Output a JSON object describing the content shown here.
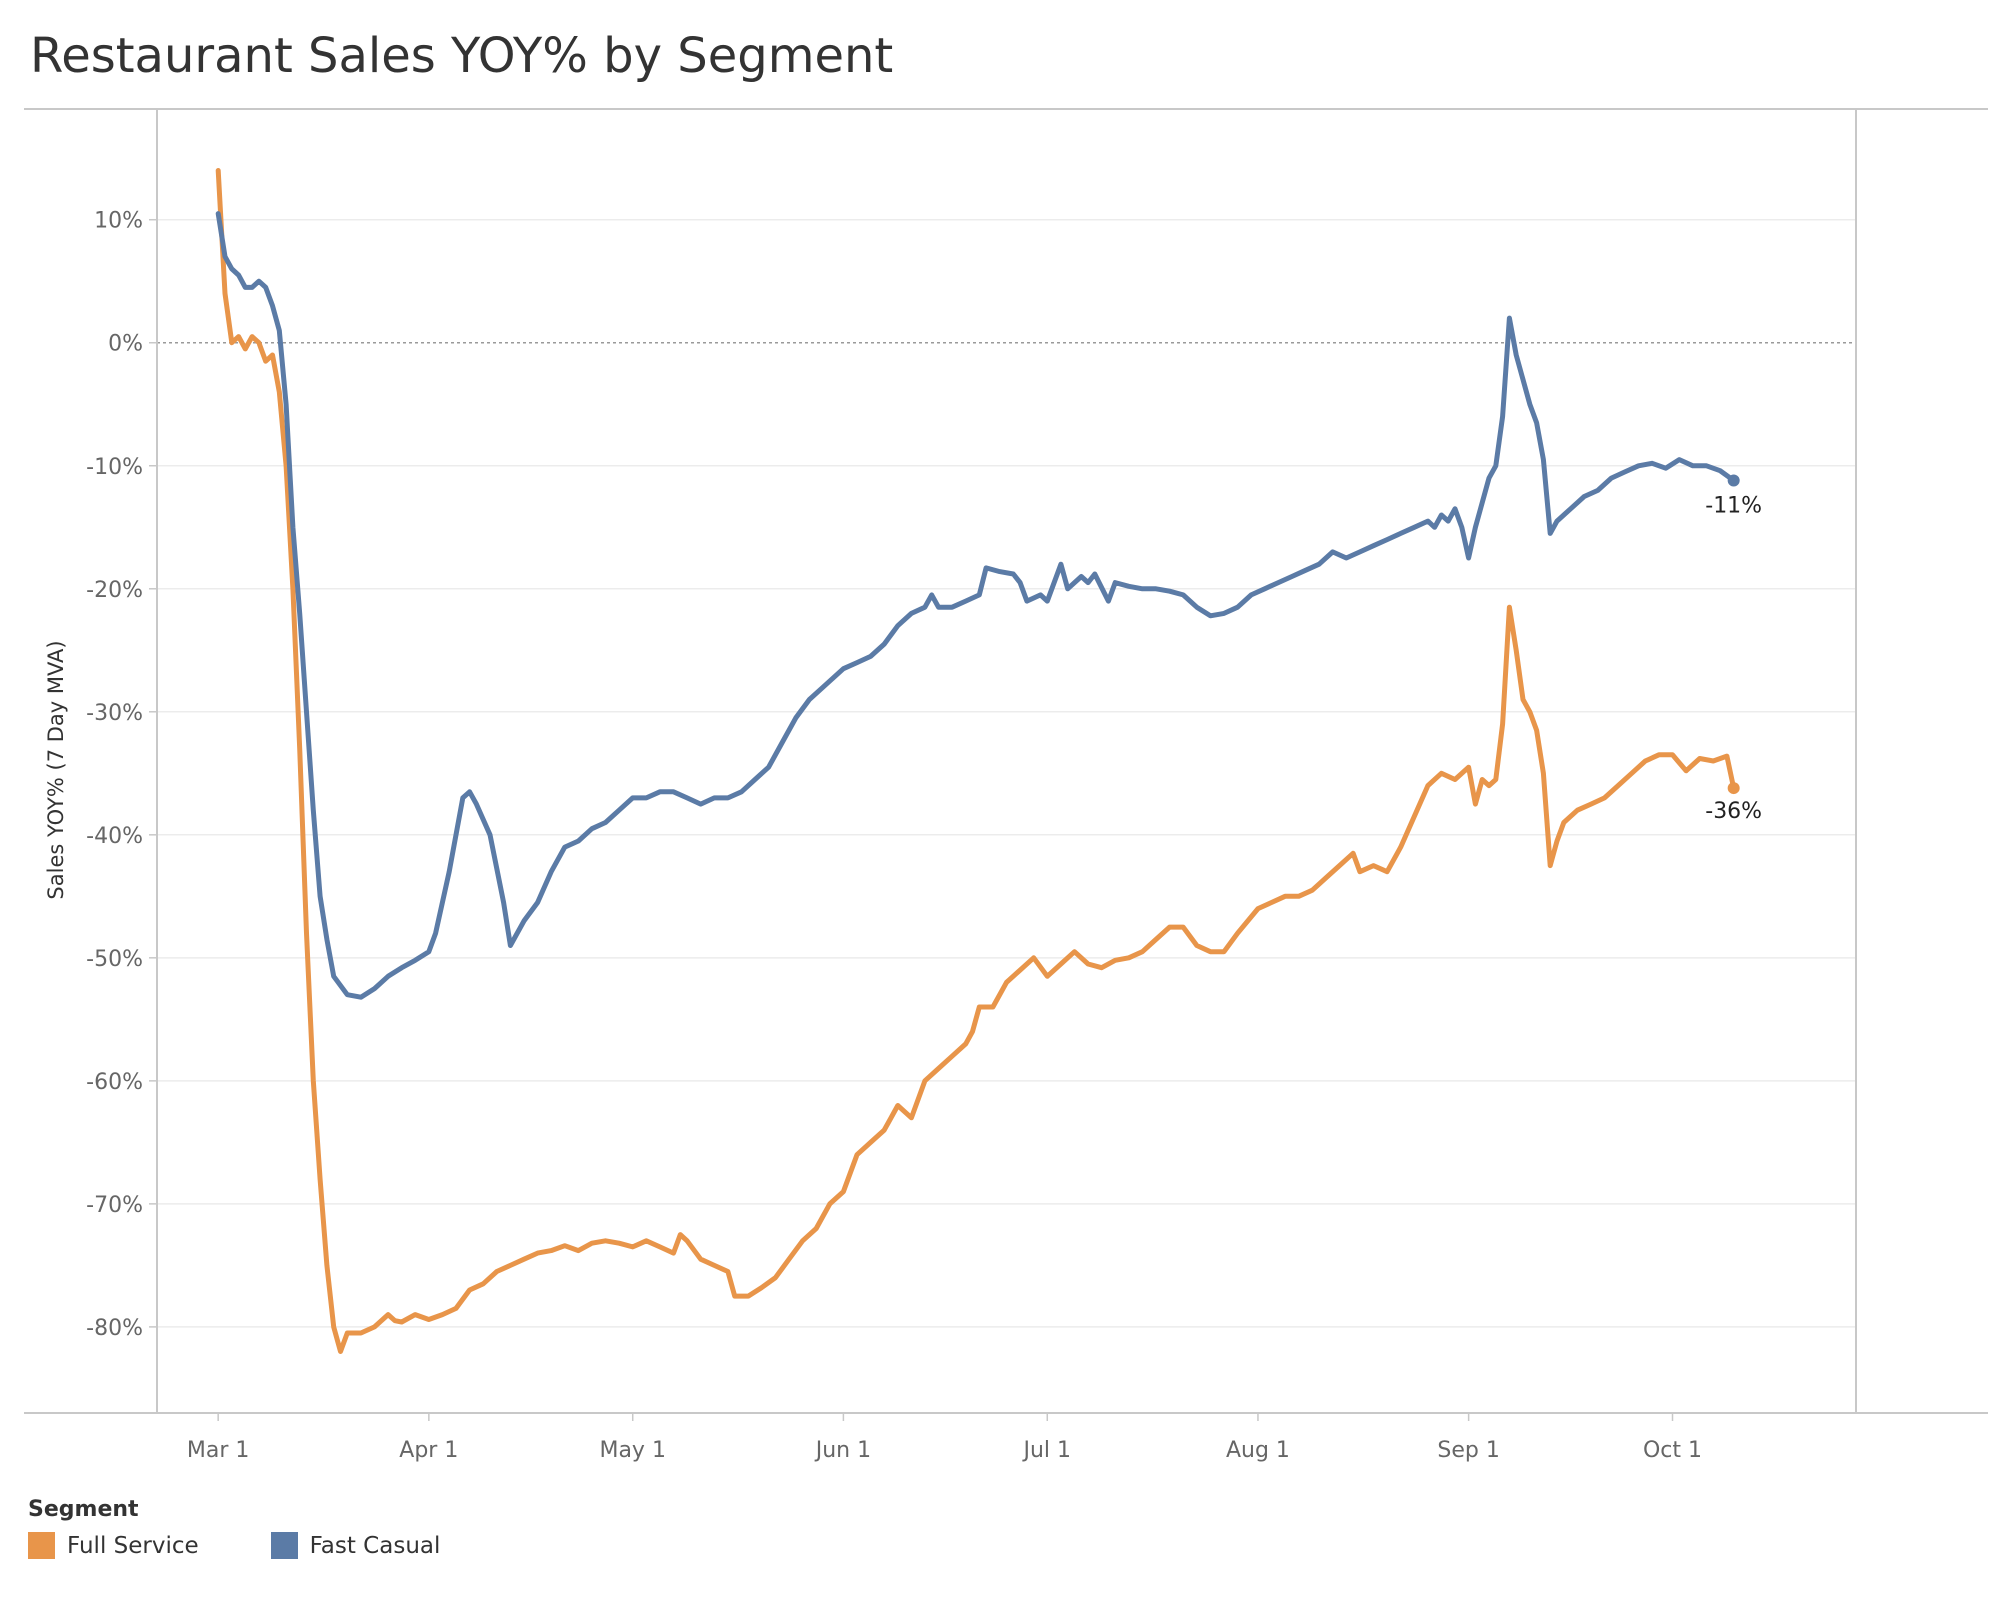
{
  "title": "Restaurant Sales YOY% by Segment",
  "legend": {
    "title": "Segment"
  },
  "colors": {
    "full_service": "#E8954A",
    "fast_casual": "#5B7BA6"
  },
  "chart_data": {
    "type": "line",
    "title": "Restaurant Sales YOY% by Segment",
    "xlabel": "",
    "ylabel": "Sales YOY% (7 Day MVA)",
    "x_ticks": [
      "Mar 1",
      "Apr 1",
      "May 1",
      "Jun 1",
      "Jul 1",
      "Aug 1",
      "Sep 1",
      "Oct 1"
    ],
    "x_tick_dates": [
      "2020-03-01",
      "2020-04-01",
      "2020-05-01",
      "2020-06-01",
      "2020-07-01",
      "2020-08-01",
      "2020-09-01",
      "2020-10-01"
    ],
    "y_ticks": [
      "10%",
      "0%",
      "-10%",
      "-20%",
      "-30%",
      "-40%",
      "-50%",
      "-60%",
      "-70%",
      "-80%"
    ],
    "y_tick_values": [
      10,
      0,
      -10,
      -20,
      -30,
      -40,
      -50,
      -60,
      -70,
      -80
    ],
    "ylim": [
      -87,
      19
    ],
    "xlim": [
      "2020-02-21",
      "2020-10-28"
    ],
    "grid": true,
    "reference_line_y": 0,
    "legend_position": "bottom-left",
    "series": [
      {
        "name": "Full Service",
        "color": "#E8954A",
        "end_label": "-36%",
        "points": [
          [
            "2020-03-01",
            14
          ],
          [
            "2020-03-02",
            4
          ],
          [
            "2020-03-03",
            0
          ],
          [
            "2020-03-04",
            0.5
          ],
          [
            "2020-03-05",
            -0.5
          ],
          [
            "2020-03-06",
            0.5
          ],
          [
            "2020-03-07",
            0
          ],
          [
            "2020-03-08",
            -1.5
          ],
          [
            "2020-03-09",
            -1
          ],
          [
            "2020-03-10",
            -4
          ],
          [
            "2020-03-11",
            -10
          ],
          [
            "2020-03-12",
            -20
          ],
          [
            "2020-03-13",
            -33
          ],
          [
            "2020-03-14",
            -48
          ],
          [
            "2020-03-15",
            -60
          ],
          [
            "2020-03-16",
            -68
          ],
          [
            "2020-03-17",
            -75
          ],
          [
            "2020-03-18",
            -80
          ],
          [
            "2020-03-19",
            -82
          ],
          [
            "2020-03-20",
            -80.5
          ],
          [
            "2020-03-22",
            -80.5
          ],
          [
            "2020-03-24",
            -80
          ],
          [
            "2020-03-26",
            -79
          ],
          [
            "2020-03-27",
            -79.5
          ],
          [
            "2020-03-28",
            -79.6
          ],
          [
            "2020-03-30",
            -79
          ],
          [
            "2020-04-01",
            -79.4
          ],
          [
            "2020-04-03",
            -79
          ],
          [
            "2020-04-05",
            -78.5
          ],
          [
            "2020-04-07",
            -77
          ],
          [
            "2020-04-09",
            -76.5
          ],
          [
            "2020-04-11",
            -75.5
          ],
          [
            "2020-04-13",
            -75
          ],
          [
            "2020-04-15",
            -74.5
          ],
          [
            "2020-04-17",
            -74
          ],
          [
            "2020-04-19",
            -73.8
          ],
          [
            "2020-04-21",
            -73.4
          ],
          [
            "2020-04-23",
            -73.8
          ],
          [
            "2020-04-25",
            -73.2
          ],
          [
            "2020-04-27",
            -73
          ],
          [
            "2020-04-29",
            -73.2
          ],
          [
            "2020-05-01",
            -73.5
          ],
          [
            "2020-05-03",
            -73
          ],
          [
            "2020-05-05",
            -73.5
          ],
          [
            "2020-05-07",
            -74
          ],
          [
            "2020-05-08",
            -72.5
          ],
          [
            "2020-05-09",
            -73
          ],
          [
            "2020-05-11",
            -74.5
          ],
          [
            "2020-05-13",
            -75
          ],
          [
            "2020-05-15",
            -75.5
          ],
          [
            "2020-05-16",
            -77.5
          ],
          [
            "2020-05-18",
            -77.5
          ],
          [
            "2020-05-20",
            -76.8
          ],
          [
            "2020-05-22",
            -76
          ],
          [
            "2020-05-24",
            -74.5
          ],
          [
            "2020-05-26",
            -73
          ],
          [
            "2020-05-28",
            -72
          ],
          [
            "2020-05-30",
            -70
          ],
          [
            "2020-06-01",
            -69
          ],
          [
            "2020-06-03",
            -66
          ],
          [
            "2020-06-05",
            -65
          ],
          [
            "2020-06-07",
            -64
          ],
          [
            "2020-06-09",
            -62
          ],
          [
            "2020-06-11",
            -63
          ],
          [
            "2020-06-13",
            -60
          ],
          [
            "2020-06-15",
            -59
          ],
          [
            "2020-06-17",
            -58
          ],
          [
            "2020-06-19",
            -57
          ],
          [
            "2020-06-20",
            -56
          ],
          [
            "2020-06-21",
            -54
          ],
          [
            "2020-06-23",
            -54
          ],
          [
            "2020-06-25",
            -52
          ],
          [
            "2020-06-27",
            -51
          ],
          [
            "2020-06-29",
            -50
          ],
          [
            "2020-07-01",
            -51.5
          ],
          [
            "2020-07-03",
            -50.5
          ],
          [
            "2020-07-05",
            -49.5
          ],
          [
            "2020-07-07",
            -50.5
          ],
          [
            "2020-07-09",
            -50.8
          ],
          [
            "2020-07-11",
            -50.2
          ],
          [
            "2020-07-13",
            -50
          ],
          [
            "2020-07-15",
            -49.5
          ],
          [
            "2020-07-17",
            -48.5
          ],
          [
            "2020-07-19",
            -47.5
          ],
          [
            "2020-07-21",
            -47.5
          ],
          [
            "2020-07-23",
            -49
          ],
          [
            "2020-07-25",
            -49.5
          ],
          [
            "2020-07-27",
            -49.5
          ],
          [
            "2020-07-29",
            -48
          ],
          [
            "2020-08-01",
            -46
          ],
          [
            "2020-08-03",
            -45.5
          ],
          [
            "2020-08-05",
            -45
          ],
          [
            "2020-08-07",
            -45
          ],
          [
            "2020-08-09",
            -44.5
          ],
          [
            "2020-08-11",
            -43.5
          ],
          [
            "2020-08-13",
            -42.5
          ],
          [
            "2020-08-15",
            -41.5
          ],
          [
            "2020-08-16",
            -43
          ],
          [
            "2020-08-18",
            -42.5
          ],
          [
            "2020-08-20",
            -43
          ],
          [
            "2020-08-22",
            -41
          ],
          [
            "2020-08-24",
            -38.5
          ],
          [
            "2020-08-26",
            -36
          ],
          [
            "2020-08-28",
            -35
          ],
          [
            "2020-08-30",
            -35.5
          ],
          [
            "2020-09-01",
            -34.5
          ],
          [
            "2020-09-02",
            -37.5
          ],
          [
            "2020-09-03",
            -35.5
          ],
          [
            "2020-09-04",
            -36
          ],
          [
            "2020-09-05",
            -35.5
          ],
          [
            "2020-09-06",
            -31
          ],
          [
            "2020-09-07",
            -21.5
          ],
          [
            "2020-09-08",
            -25
          ],
          [
            "2020-09-09",
            -29
          ],
          [
            "2020-09-10",
            -30
          ],
          [
            "2020-09-11",
            -31.5
          ],
          [
            "2020-09-12",
            -35
          ],
          [
            "2020-09-13",
            -42.5
          ],
          [
            "2020-09-14",
            -40.5
          ],
          [
            "2020-09-15",
            -39
          ],
          [
            "2020-09-17",
            -38
          ],
          [
            "2020-09-19",
            -37.5
          ],
          [
            "2020-09-21",
            -37
          ],
          [
            "2020-09-23",
            -36
          ],
          [
            "2020-09-25",
            -35
          ],
          [
            "2020-09-27",
            -34
          ],
          [
            "2020-09-29",
            -33.5
          ],
          [
            "2020-10-01",
            -33.5
          ],
          [
            "2020-10-03",
            -34.8
          ],
          [
            "2020-10-05",
            -33.8
          ],
          [
            "2020-10-07",
            -34
          ],
          [
            "2020-10-09",
            -33.6
          ],
          [
            "2020-10-10",
            -36.2
          ]
        ]
      },
      {
        "name": "Fast Casual",
        "color": "#5B7BA6",
        "end_label": "-11%",
        "points": [
          [
            "2020-03-01",
            10.5
          ],
          [
            "2020-03-02",
            7
          ],
          [
            "2020-03-03",
            6
          ],
          [
            "2020-03-04",
            5.5
          ],
          [
            "2020-03-05",
            4.5
          ],
          [
            "2020-03-06",
            4.5
          ],
          [
            "2020-03-07",
            5
          ],
          [
            "2020-03-08",
            4.5
          ],
          [
            "2020-03-09",
            3
          ],
          [
            "2020-03-10",
            1
          ],
          [
            "2020-03-11",
            -5
          ],
          [
            "2020-03-12",
            -15
          ],
          [
            "2020-03-13",
            -22
          ],
          [
            "2020-03-14",
            -30
          ],
          [
            "2020-03-15",
            -38
          ],
          [
            "2020-03-16",
            -45
          ],
          [
            "2020-03-17",
            -48.5
          ],
          [
            "2020-03-18",
            -51.5
          ],
          [
            "2020-03-20",
            -53
          ],
          [
            "2020-03-22",
            -53.2
          ],
          [
            "2020-03-24",
            -52.5
          ],
          [
            "2020-03-26",
            -51.5
          ],
          [
            "2020-03-28",
            -50.8
          ],
          [
            "2020-03-30",
            -50.2
          ],
          [
            "2020-04-01",
            -49.5
          ],
          [
            "2020-04-02",
            -48
          ],
          [
            "2020-04-04",
            -43
          ],
          [
            "2020-04-06",
            -37
          ],
          [
            "2020-04-07",
            -36.5
          ],
          [
            "2020-04-08",
            -37.5
          ],
          [
            "2020-04-10",
            -40
          ],
          [
            "2020-04-12",
            -45.5
          ],
          [
            "2020-04-13",
            -49
          ],
          [
            "2020-04-15",
            -47
          ],
          [
            "2020-04-17",
            -45.5
          ],
          [
            "2020-04-19",
            -43
          ],
          [
            "2020-04-21",
            -41
          ],
          [
            "2020-04-23",
            -40.5
          ],
          [
            "2020-04-25",
            -39.5
          ],
          [
            "2020-04-27",
            -39
          ],
          [
            "2020-04-29",
            -38
          ],
          [
            "2020-05-01",
            -37
          ],
          [
            "2020-05-03",
            -37
          ],
          [
            "2020-05-05",
            -36.5
          ],
          [
            "2020-05-07",
            -36.5
          ],
          [
            "2020-05-09",
            -37
          ],
          [
            "2020-05-11",
            -37.5
          ],
          [
            "2020-05-13",
            -37
          ],
          [
            "2020-05-15",
            -37
          ],
          [
            "2020-05-17",
            -36.5
          ],
          [
            "2020-05-19",
            -35.5
          ],
          [
            "2020-05-21",
            -34.5
          ],
          [
            "2020-05-23",
            -32.5
          ],
          [
            "2020-05-25",
            -30.5
          ],
          [
            "2020-05-27",
            -29
          ],
          [
            "2020-05-29",
            -28
          ],
          [
            "2020-06-01",
            -26.5
          ],
          [
            "2020-06-03",
            -26
          ],
          [
            "2020-06-05",
            -25.5
          ],
          [
            "2020-06-07",
            -24.5
          ],
          [
            "2020-06-09",
            -23
          ],
          [
            "2020-06-11",
            -22
          ],
          [
            "2020-06-13",
            -21.5
          ],
          [
            "2020-06-14",
            -20.5
          ],
          [
            "2020-06-15",
            -21.5
          ],
          [
            "2020-06-17",
            -21.5
          ],
          [
            "2020-06-19",
            -21
          ],
          [
            "2020-06-21",
            -20.5
          ],
          [
            "2020-06-22",
            -18.3
          ],
          [
            "2020-06-24",
            -18.6
          ],
          [
            "2020-06-26",
            -18.8
          ],
          [
            "2020-06-27",
            -19.5
          ],
          [
            "2020-06-28",
            -21
          ],
          [
            "2020-06-30",
            -20.5
          ],
          [
            "2020-07-01",
            -21
          ],
          [
            "2020-07-03",
            -18
          ],
          [
            "2020-07-04",
            -20
          ],
          [
            "2020-07-06",
            -19
          ],
          [
            "2020-07-07",
            -19.5
          ],
          [
            "2020-07-08",
            -18.8
          ],
          [
            "2020-07-10",
            -21
          ],
          [
            "2020-07-11",
            -19.5
          ],
          [
            "2020-07-13",
            -19.8
          ],
          [
            "2020-07-15",
            -20
          ],
          [
            "2020-07-17",
            -20
          ],
          [
            "2020-07-19",
            -20.2
          ],
          [
            "2020-07-21",
            -20.5
          ],
          [
            "2020-07-23",
            -21.5
          ],
          [
            "2020-07-25",
            -22.2
          ],
          [
            "2020-07-27",
            -22
          ],
          [
            "2020-07-29",
            -21.5
          ],
          [
            "2020-07-31",
            -20.5
          ],
          [
            "2020-08-02",
            -20
          ],
          [
            "2020-08-04",
            -19.5
          ],
          [
            "2020-08-06",
            -19
          ],
          [
            "2020-08-08",
            -18.5
          ],
          [
            "2020-08-10",
            -18
          ],
          [
            "2020-08-12",
            -17
          ],
          [
            "2020-08-14",
            -17.5
          ],
          [
            "2020-08-16",
            -17
          ],
          [
            "2020-08-18",
            -16.5
          ],
          [
            "2020-08-20",
            -16
          ],
          [
            "2020-08-22",
            -15.5
          ],
          [
            "2020-08-24",
            -15
          ],
          [
            "2020-08-26",
            -14.5
          ],
          [
            "2020-08-27",
            -15
          ],
          [
            "2020-08-28",
            -14
          ],
          [
            "2020-08-29",
            -14.5
          ],
          [
            "2020-08-30",
            -13.5
          ],
          [
            "2020-08-31",
            -15
          ],
          [
            "2020-09-01",
            -17.5
          ],
          [
            "2020-09-02",
            -15
          ],
          [
            "2020-09-03",
            -13
          ],
          [
            "2020-09-04",
            -11
          ],
          [
            "2020-09-05",
            -10
          ],
          [
            "2020-09-06",
            -6
          ],
          [
            "2020-09-07",
            2
          ],
          [
            "2020-09-08",
            -1
          ],
          [
            "2020-09-09",
            -3
          ],
          [
            "2020-09-10",
            -5
          ],
          [
            "2020-09-11",
            -6.5
          ],
          [
            "2020-09-12",
            -9.5
          ],
          [
            "2020-09-13",
            -15.5
          ],
          [
            "2020-09-14",
            -14.5
          ],
          [
            "2020-09-16",
            -13.5
          ],
          [
            "2020-09-18",
            -12.5
          ],
          [
            "2020-09-20",
            -12
          ],
          [
            "2020-09-22",
            -11
          ],
          [
            "2020-09-24",
            -10.5
          ],
          [
            "2020-09-26",
            -10
          ],
          [
            "2020-09-28",
            -9.8
          ],
          [
            "2020-09-30",
            -10.2
          ],
          [
            "2020-10-02",
            -9.5
          ],
          [
            "2020-10-04",
            -10
          ],
          [
            "2020-10-06",
            -10
          ],
          [
            "2020-10-08",
            -10.4
          ],
          [
            "2020-10-10",
            -11.2
          ]
        ]
      }
    ]
  }
}
